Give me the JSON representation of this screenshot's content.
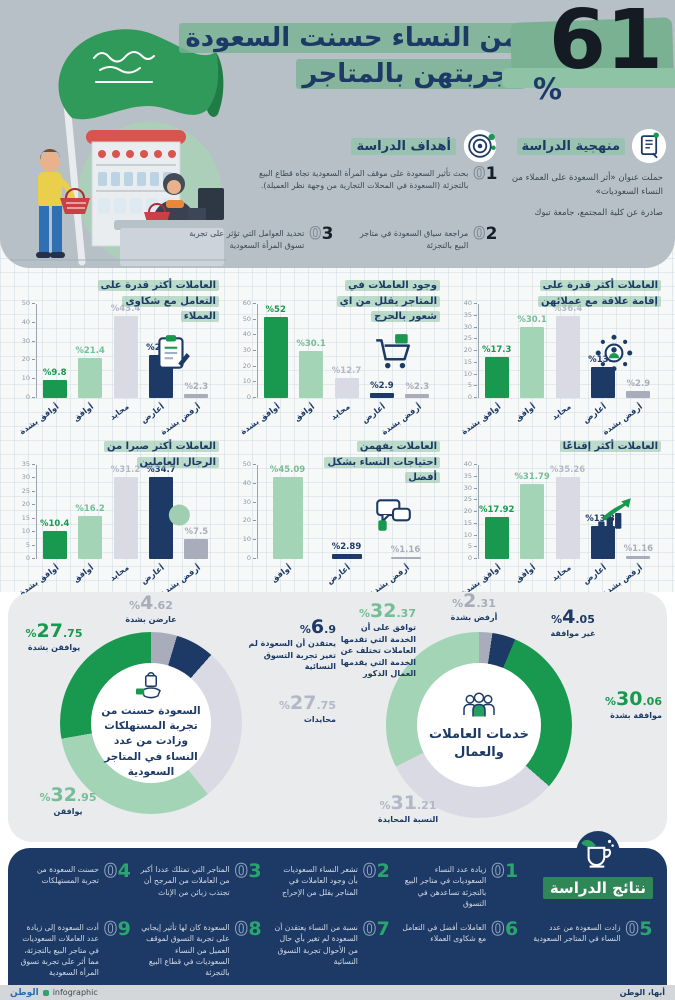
{
  "colors": {
    "green": "#18994f",
    "light_green": "#a2d4b5",
    "neutral_gray": "#d9dae3",
    "navy": "#1d3a66",
    "gray": "#a9adbb",
    "label_light_green": "#74bd97",
    "label_silver": "#b4b7c6",
    "brush_green": "#8cc3a4",
    "header_bg": "#b6c0c6",
    "panel_bg": "#e9ebec",
    "charts_bg": "#f7f9f8",
    "results_bg": "#1d3a66"
  },
  "header": {
    "big_number": "61",
    "percent": "%",
    "title_line1": "من النساء حسنت السعودة",
    "title_line2": "تجربتهن بالمتاجر"
  },
  "methodology": {
    "title": "منهجية الدراسة",
    "paragraphs": [
      "حملت عنوان «أثر السعودة على العملاء من النساء السعوديات»",
      "صادرة عن كلية المجتمع، جامعة تبوك"
    ]
  },
  "objectives": {
    "title": "أهداف الدراسة",
    "items": [
      {
        "num": "01",
        "text": "بحث تأثير السعودة على موقف المرأة السعودية تجاه قطاع البيع بالتجزئة (السعودة في المحلات التجارية من وجهة نظر العميلة)."
      },
      {
        "num": "02",
        "text": "مراجعة سياق السعودة في متاجر البيع بالتجزئة"
      },
      {
        "num": "03",
        "text": "تحديد العوامل التي تؤثر على تجربة تسوق المرأة السعودية"
      }
    ]
  },
  "chart_data": [
    {
      "type": "bar",
      "title": "العاملات أكثر قدرة على إقامة علاقة مع عملائهن",
      "icon": "network-people-icon",
      "categories": [
        "أوافق بشدة",
        "أوافق",
        "محايد",
        "أعارض",
        "أرفض بشدة"
      ],
      "cat_keys": [
        "strong_agree",
        "agree",
        "neutral",
        "disagree",
        "strong_disagree"
      ],
      "values": [
        17.3,
        30.1,
        36.4,
        13.3,
        2.9
      ],
      "ylim": [
        0,
        40
      ],
      "ytick_step": 5
    },
    {
      "type": "bar",
      "title": "وجود العاملات في المتاجر يقلل من اي شعور بالحرج",
      "icon": "cart-icon",
      "categories": [
        "أوافق بشدة",
        "أوافق",
        "محايد",
        "أعارض",
        "أرفض بشدة"
      ],
      "cat_keys": [
        "strong_agree",
        "agree",
        "neutral",
        "disagree",
        "strong_disagree"
      ],
      "values": [
        52,
        30.1,
        12.7,
        2.9,
        2.3
      ],
      "ylim": [
        0,
        60
      ],
      "ytick_step": 10
    },
    {
      "type": "bar",
      "title": "العاملات أكثر قدرة على التعامل مع شكاوى العملاء",
      "icon": "clipboard-icon",
      "categories": [
        "أوافق بشدة",
        "أوافق",
        "محايد",
        "أعارض",
        "أرفض بشدة"
      ],
      "cat_keys": [
        "strong_agree",
        "agree",
        "neutral",
        "disagree",
        "strong_disagree"
      ],
      "values": [
        9.8,
        21.4,
        43.4,
        23.1,
        2.3
      ],
      "ylim": [
        0,
        50
      ],
      "ytick_step": 10
    },
    {
      "type": "bar",
      "title": "العاملات أكثر إقناعًا",
      "icon": "growth-arrow-icon",
      "categories": [
        "أوافق بشدة",
        "أوافق",
        "محايد",
        "أعارض",
        "أرفض بشدة"
      ],
      "cat_keys": [
        "strong_agree",
        "agree",
        "neutral",
        "disagree",
        "strong_disagree"
      ],
      "values": [
        17.92,
        31.79,
        35.26,
        13.87,
        1.16
      ],
      "ylim": [
        0,
        40
      ],
      "ytick_step": 5
    },
    {
      "type": "bar",
      "title": "العاملات يفهمن احتياجات النساء بشكل أفضل",
      "icon": "chat-icon",
      "categories": [
        "أوافق",
        "أعارض",
        "أرفض بشدة"
      ],
      "cat_keys": [
        "agree",
        "disagree",
        "strong_disagree"
      ],
      "values": [
        45.09,
        2.89,
        1.16
      ],
      "ylim": [
        0,
        50
      ],
      "ytick_step": 10
    },
    {
      "type": "bar",
      "title": "العاملات أكثر صبرا من الرجال العاملين",
      "icon": "chess-knight-icon",
      "categories": [
        "أوافق بشدة",
        "أوافق",
        "محايد",
        "أعارض",
        "أرفض بشدة"
      ],
      "cat_keys": [
        "strong_agree",
        "agree",
        "neutral",
        "disagree",
        "strong_disagree"
      ],
      "values": [
        10.4,
        16.2,
        31.2,
        34.7,
        7.5
      ],
      "ylim": [
        0,
        35
      ],
      "ytick_step": 5
    },
    {
      "type": "donut",
      "center_text": "السعودة حسنت من تجربة المستهلكات وزادت من عدد النساء في المتاجر السعودية",
      "icon": "hand-bag-icon",
      "slices": [
        {
          "label": "عارضن بشدة",
          "value": 4.62,
          "color": "gray"
        },
        {
          "label": "يعتقدن أن السعودة لم تغير تجربة التسوق النسائية",
          "value": 6.9,
          "color": "navy"
        },
        {
          "label": "محايدات",
          "value": 27.75,
          "color": "neutral_gray"
        },
        {
          "label": "يوافقن",
          "value": 32.95,
          "color": "light_green"
        },
        {
          "label": "يوافقن بشدة",
          "value": 27.75,
          "color": "green"
        }
      ]
    },
    {
      "type": "donut",
      "center_text": "خدمات العاملات والعمال",
      "icon": "people-group-icon",
      "slices": [
        {
          "label": "أرفض بشدة",
          "value": 2.31,
          "color": "gray"
        },
        {
          "label": "غير موافقة",
          "value": 4.05,
          "color": "navy"
        },
        {
          "label": "موافقة بشدة",
          "value": 30.06,
          "color": "green"
        },
        {
          "label": "النسبة المحايدة",
          "value": 31.21,
          "color": "neutral_gray"
        },
        {
          "label": "توافق على أن الخدمة التي تقدمها العاملات تختلف عن الخدمة التي يقدمها العمال الذكور",
          "value": 32.37,
          "color": "light_green"
        }
      ]
    }
  ],
  "results": {
    "title": "نتائج الدراسة",
    "items": [
      {
        "num": "01",
        "text": "زيادة عدد النساء السعوديات في متاجر البيع بالتجزئة تساعدهن في التسوق"
      },
      {
        "num": "02",
        "text": "تشعر النساء السعوديات بأن وجود العاملات في المتاجر يقلل من الإحراج"
      },
      {
        "num": "03",
        "text": "المتاجر التي تمتلك عددا أكبر من العاملات من المرجح أن تجتذب زبائن من الإناث"
      },
      {
        "num": "04",
        "text": "حسنت السعودة من تجربة المستهلكات"
      },
      {
        "num": "05",
        "text": "زادت السعودة من عدد النساء في المتاجر السعودية"
      },
      {
        "num": "06",
        "text": "العاملات أفضل في التعامل مع شكاوى العملاء"
      },
      {
        "num": "07",
        "text": "نسبة من النساء يعتقدن أن السعودة لم تغير بأي حال من الأحوال تجربة التسوق النسائية"
      },
      {
        "num": "08",
        "text": "السعودة كان لها تأثير إيجابي على تجربة التسوق لموقف العميل من النساء السعوديات في قطاع البيع بالتجزئة"
      },
      {
        "num": "09",
        "text": "أدت السعودة إلى زيادة عدد العاملات السعوديات في متاجر البيع بالتجزئة، مما أثر على تجربة تسوق المرأة السعودية"
      }
    ]
  },
  "footer": {
    "brand": "الوطن",
    "brand_suffix": "infographic",
    "credit": "أبها، الوطن"
  }
}
